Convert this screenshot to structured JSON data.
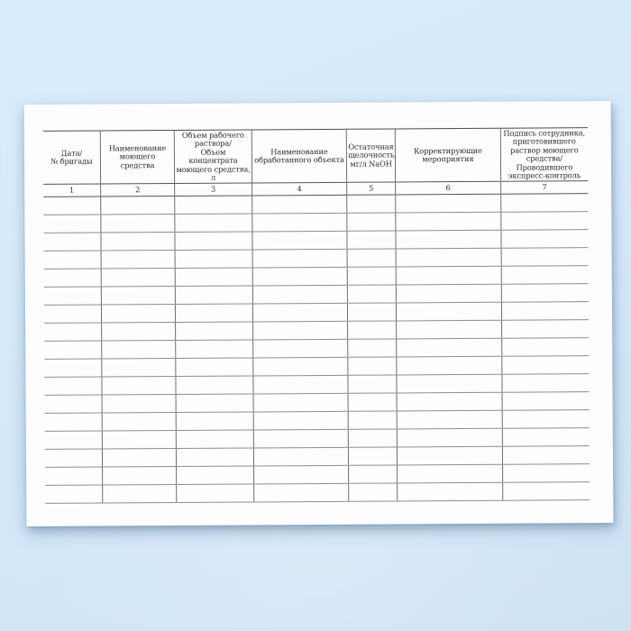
{
  "page": {
    "background_top_color": "#d9edfd",
    "background_bottom_color": "#cce1f4",
    "paper_color": "#fdfdfe",
    "rule_color": "#6e6e6e"
  },
  "table": {
    "columns": [
      {
        "number": "1",
        "label": "Дата/\n№ бригады"
      },
      {
        "number": "2",
        "label": "Наименование\nмоющего средства"
      },
      {
        "number": "3",
        "label": "Объем рабочего\nраствора/\nОбъем концентрата\nмоющего средства, л"
      },
      {
        "number": "4",
        "label": "Наименование\nобработанного объекта"
      },
      {
        "number": "5",
        "label": "Остаточная\nщелочность,\nмг/л NaOH"
      },
      {
        "number": "6",
        "label": "Корректирующие\nмероприятия"
      },
      {
        "number": "7",
        "label": "Подпись сотрудника,\nприготовившего\nраствор моющего\nсредства/\nПроводившего\nэкспресс-контроль"
      }
    ],
    "empty_row_count": 17
  }
}
